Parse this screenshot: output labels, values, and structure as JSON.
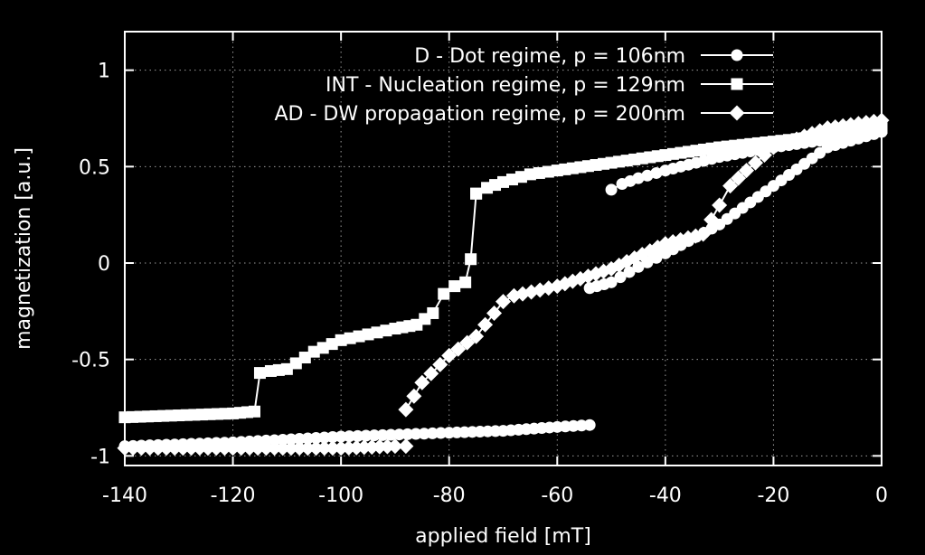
{
  "chart_data": {
    "type": "line",
    "title": "",
    "xlabel": "applied field [mT]",
    "ylabel": "magnetization [a.u.]",
    "xlim": [
      -140,
      0
    ],
    "ylim": [
      -1.05,
      1.2
    ],
    "xticks": [
      -140,
      -120,
      -100,
      -80,
      -60,
      -40,
      -20,
      0
    ],
    "xtick_labels": [
      "-140",
      "-120",
      "-100",
      "-80",
      "-60",
      "-40",
      "-20",
      "0"
    ],
    "yticks": [
      -1,
      -0.5,
      0,
      0.5,
      1
    ],
    "ytick_labels": [
      "-1",
      "-0.5",
      "0",
      "0.5",
      "1"
    ],
    "grid": true,
    "legend_position": "top-right",
    "background": "#000000",
    "foreground": "#ffffff",
    "series": [
      {
        "name": "D - Dot regime, p = 106nm",
        "marker": "circle",
        "upper_branch": {
          "x": [
            0,
            -10,
            -20,
            -30,
            -40,
            -45,
            -48,
            -50
          ],
          "y": [
            0.68,
            0.64,
            0.6,
            0.55,
            0.48,
            0.44,
            0.41,
            0.38
          ]
        },
        "lower_branch": {
          "x": [
            -140,
            -120,
            -100,
            -80,
            -70,
            -60,
            -54
          ],
          "y": [
            -0.95,
            -0.93,
            -0.9,
            -0.88,
            -0.87,
            -0.85,
            -0.84
          ]
        },
        "mid_branch": {
          "x": [
            -54,
            -50,
            -45,
            -40,
            -30,
            -20,
            -10,
            0
          ],
          "y": [
            -0.13,
            -0.1,
            -0.02,
            0.05,
            0.2,
            0.4,
            0.6,
            0.68
          ]
        }
      },
      {
        "name": "INT - Nucleation regime, p = 129nm",
        "marker": "square",
        "upper_branch": {
          "x": [
            0,
            -10,
            -20,
            -30,
            -40,
            -50,
            -60,
            -65,
            -70,
            -73,
            -75
          ],
          "y": [
            0.7,
            0.66,
            0.63,
            0.6,
            0.56,
            0.52,
            0.48,
            0.46,
            0.42,
            0.39,
            0.36
          ]
        },
        "lower_branch": {
          "x": [
            -140,
            -130,
            -120,
            -116,
            -115,
            -113,
            -110,
            -105,
            -100,
            -95,
            -90,
            -86,
            -83,
            -81,
            -79,
            -77,
            -76,
            -75
          ],
          "y": [
            -0.8,
            -0.79,
            -0.78,
            -0.77,
            -0.57,
            -0.56,
            -0.55,
            -0.46,
            -0.4,
            -0.37,
            -0.34,
            -0.32,
            -0.26,
            -0.16,
            -0.12,
            -0.1,
            0.02,
            0.36
          ]
        }
      },
      {
        "name": "AD - DW propagation regime, p = 200nm",
        "marker": "diamond",
        "upper_branch": {
          "x": [
            0,
            -10,
            -20,
            -25,
            -28,
            -30,
            -33,
            -40,
            -50,
            -60,
            -68,
            -70,
            -75,
            -80,
            -85,
            -88
          ],
          "y": [
            0.74,
            0.7,
            0.6,
            0.48,
            0.4,
            0.3,
            0.15,
            0.1,
            -0.03,
            -0.12,
            -0.17,
            -0.2,
            -0.38,
            -0.48,
            -0.62,
            -0.76
          ]
        },
        "lower_branch": {
          "x": [
            -140,
            -120,
            -100,
            -90,
            -88
          ],
          "y": [
            -0.96,
            -0.96,
            -0.96,
            -0.95,
            -0.95
          ]
        }
      }
    ]
  }
}
